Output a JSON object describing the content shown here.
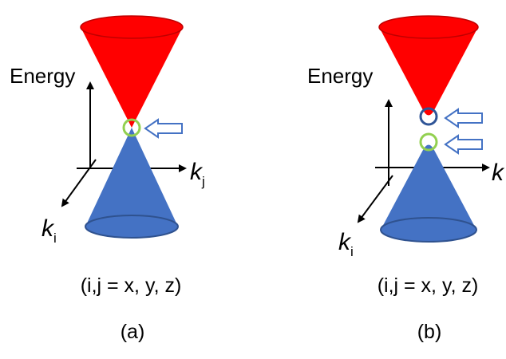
{
  "panels": [
    {
      "energy_label": "Energy",
      "k_i": "k",
      "k_i_sub": "i",
      "k_j": "k",
      "k_j_sub": "j",
      "indices": "(i,j = x, y, z)",
      "caption": "(a)"
    },
    {
      "energy_label": "Energy",
      "k_i": "k",
      "k_i_sub": "i",
      "k_j": "k",
      "indices": "(i,j = x, y, z)",
      "caption": "(b)"
    }
  ],
  "colors": {
    "upper_cone": "#ff0000",
    "lower_cone": "#4472c4",
    "gapless_marker": "#92d050",
    "upper_marker_b": "#2f5597",
    "arrow_outline": "#4472c4",
    "axis": "#000000"
  },
  "icons": [
    "hollow-arrow-left",
    "dirac-cone",
    "gapped-cone"
  ]
}
